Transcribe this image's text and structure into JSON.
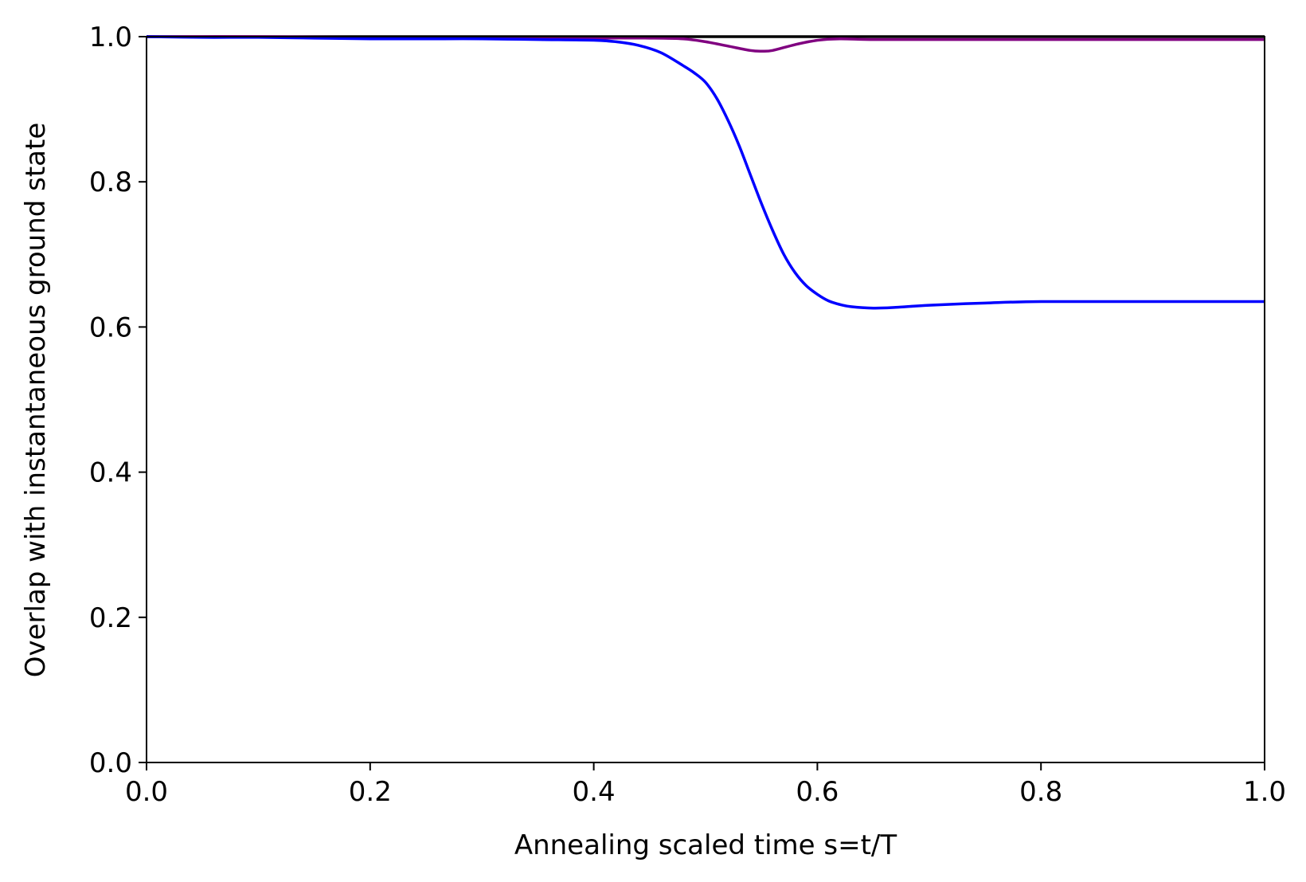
{
  "chart_data": {
    "type": "line",
    "title": "",
    "xlabel": "Annealing scaled time s=t/T",
    "ylabel": "Overlap with instantaneous ground state",
    "xlim": [
      0.0,
      1.0
    ],
    "ylim": [
      0.0,
      1.0
    ],
    "grid": false,
    "legend": "none",
    "x_ticks": [
      "0.0",
      "0.2",
      "0.4",
      "0.6",
      "0.8",
      "1.0"
    ],
    "y_ticks": [
      "0.0",
      "0.2",
      "0.4",
      "0.6",
      "0.8",
      "1.0"
    ],
    "series": [
      {
        "color": "#000000",
        "x": [
          0.0,
          1.0
        ],
        "y": [
          1.0,
          1.0
        ]
      },
      {
        "color": "#800080",
        "x": [
          0.0,
          0.1,
          0.2,
          0.3,
          0.4,
          0.45,
          0.48,
          0.5,
          0.52,
          0.54,
          0.55,
          0.56,
          0.58,
          0.6,
          0.62,
          0.65,
          0.7,
          0.8,
          0.9,
          1.0
        ],
        "y": [
          1.0,
          1.0,
          0.999,
          0.999,
          0.998,
          0.998,
          0.997,
          0.993,
          0.987,
          0.981,
          0.98,
          0.981,
          0.989,
          0.995,
          0.997,
          0.996,
          0.996,
          0.996,
          0.996,
          0.996
        ]
      },
      {
        "color": "#0000ff",
        "x": [
          0.0,
          0.05,
          0.1,
          0.15,
          0.2,
          0.25,
          0.3,
          0.35,
          0.4,
          0.42,
          0.44,
          0.46,
          0.48,
          0.49,
          0.5,
          0.51,
          0.52,
          0.53,
          0.54,
          0.55,
          0.56,
          0.57,
          0.58,
          0.59,
          0.6,
          0.61,
          0.62,
          0.63,
          0.65,
          0.67,
          0.7,
          0.75,
          0.8,
          0.9,
          1.0
        ],
        "y": [
          1.0,
          0.999,
          0.999,
          0.998,
          0.997,
          0.997,
          0.997,
          0.996,
          0.995,
          0.993,
          0.988,
          0.978,
          0.96,
          0.95,
          0.937,
          0.915,
          0.885,
          0.85,
          0.81,
          0.77,
          0.733,
          0.7,
          0.675,
          0.657,
          0.645,
          0.636,
          0.631,
          0.628,
          0.626,
          0.627,
          0.63,
          0.633,
          0.635,
          0.635,
          0.635
        ]
      }
    ]
  }
}
